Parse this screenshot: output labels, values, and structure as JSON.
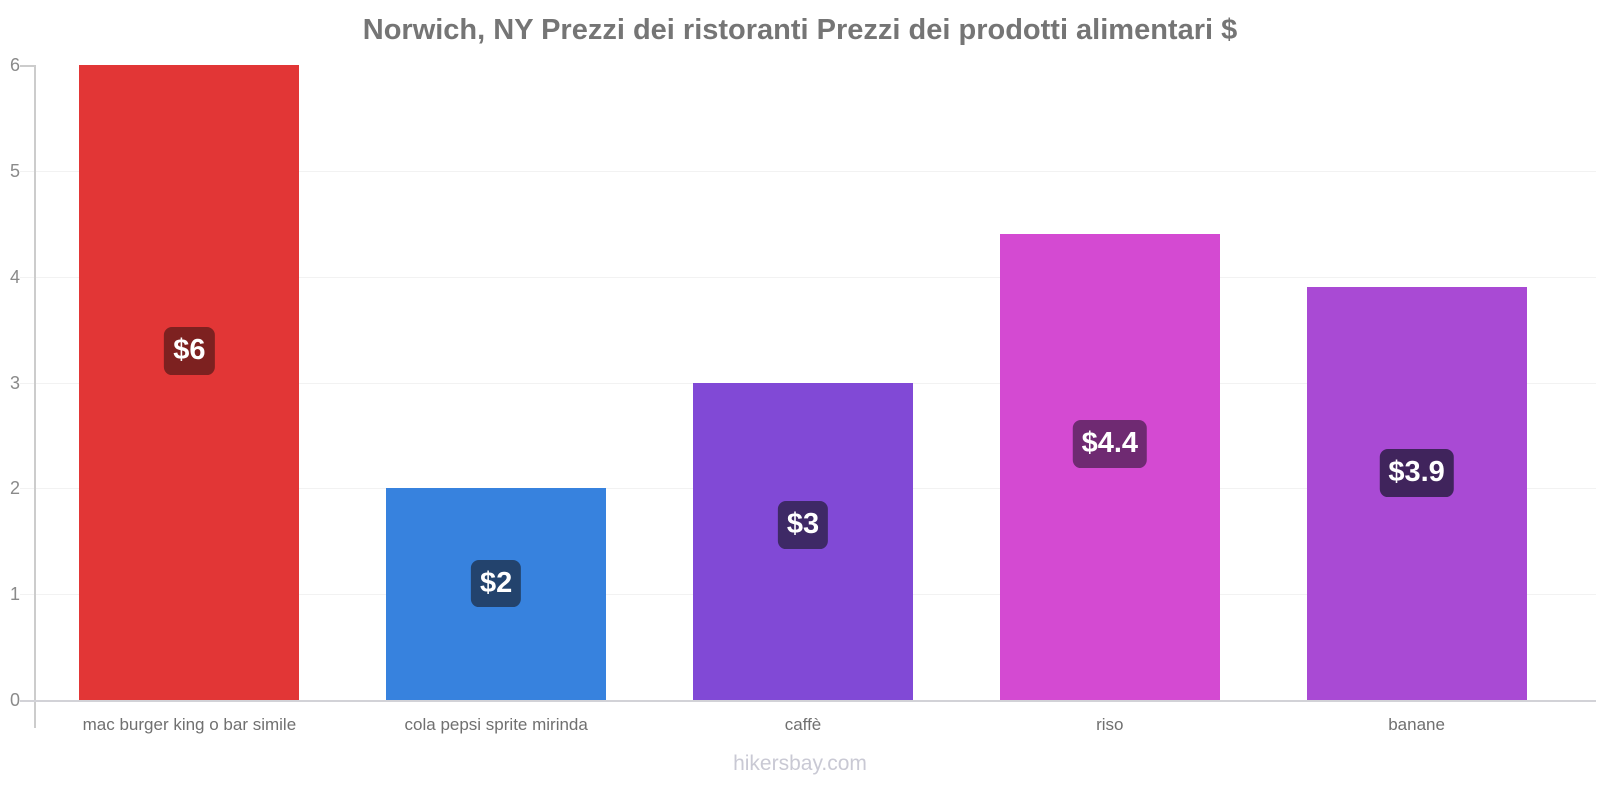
{
  "title": "Norwich, NY Prezzi dei ristoranti Prezzi dei prodotti alimentari $",
  "watermark": "hikersbay.com",
  "chart_data": {
    "type": "bar",
    "title": "Norwich, NY Prezzi dei ristoranti Prezzi dei prodotti alimentari $",
    "categories": [
      "mac burger king o bar simile",
      "cola pepsi sprite mirinda",
      "caffè",
      "riso",
      "banane"
    ],
    "values": [
      6,
      2,
      3,
      4.4,
      3.9
    ],
    "value_labels": [
      "$6",
      "$2",
      "$3",
      "$4.4",
      "$3.9"
    ],
    "bar_colors": [
      "#e23636",
      "#3782de",
      "#8149d6",
      "#d44ad2",
      "#a94ad4"
    ],
    "badge_colors": [
      "#7d2120",
      "#23436d",
      "#3e2966",
      "#6f2a72",
      "#40245c"
    ],
    "currency": "$",
    "ylim": [
      0,
      6
    ],
    "yticks": [
      0,
      1,
      2,
      3,
      4,
      5,
      6
    ],
    "grid": "horizontal-light",
    "legend_position": "none",
    "xlabel": "",
    "ylabel": ""
  },
  "colors": {
    "background": "#ffffff",
    "title_text": "#757575",
    "axis_line": "#cccccc",
    "baseline": "#d2d2d7",
    "gridline": "#f2f2f2",
    "y_tick_text": "#8a8a8a",
    "x_label_text": "#707070",
    "watermark_text": "#c9c9d4",
    "badge_text": "#ffffff"
  }
}
